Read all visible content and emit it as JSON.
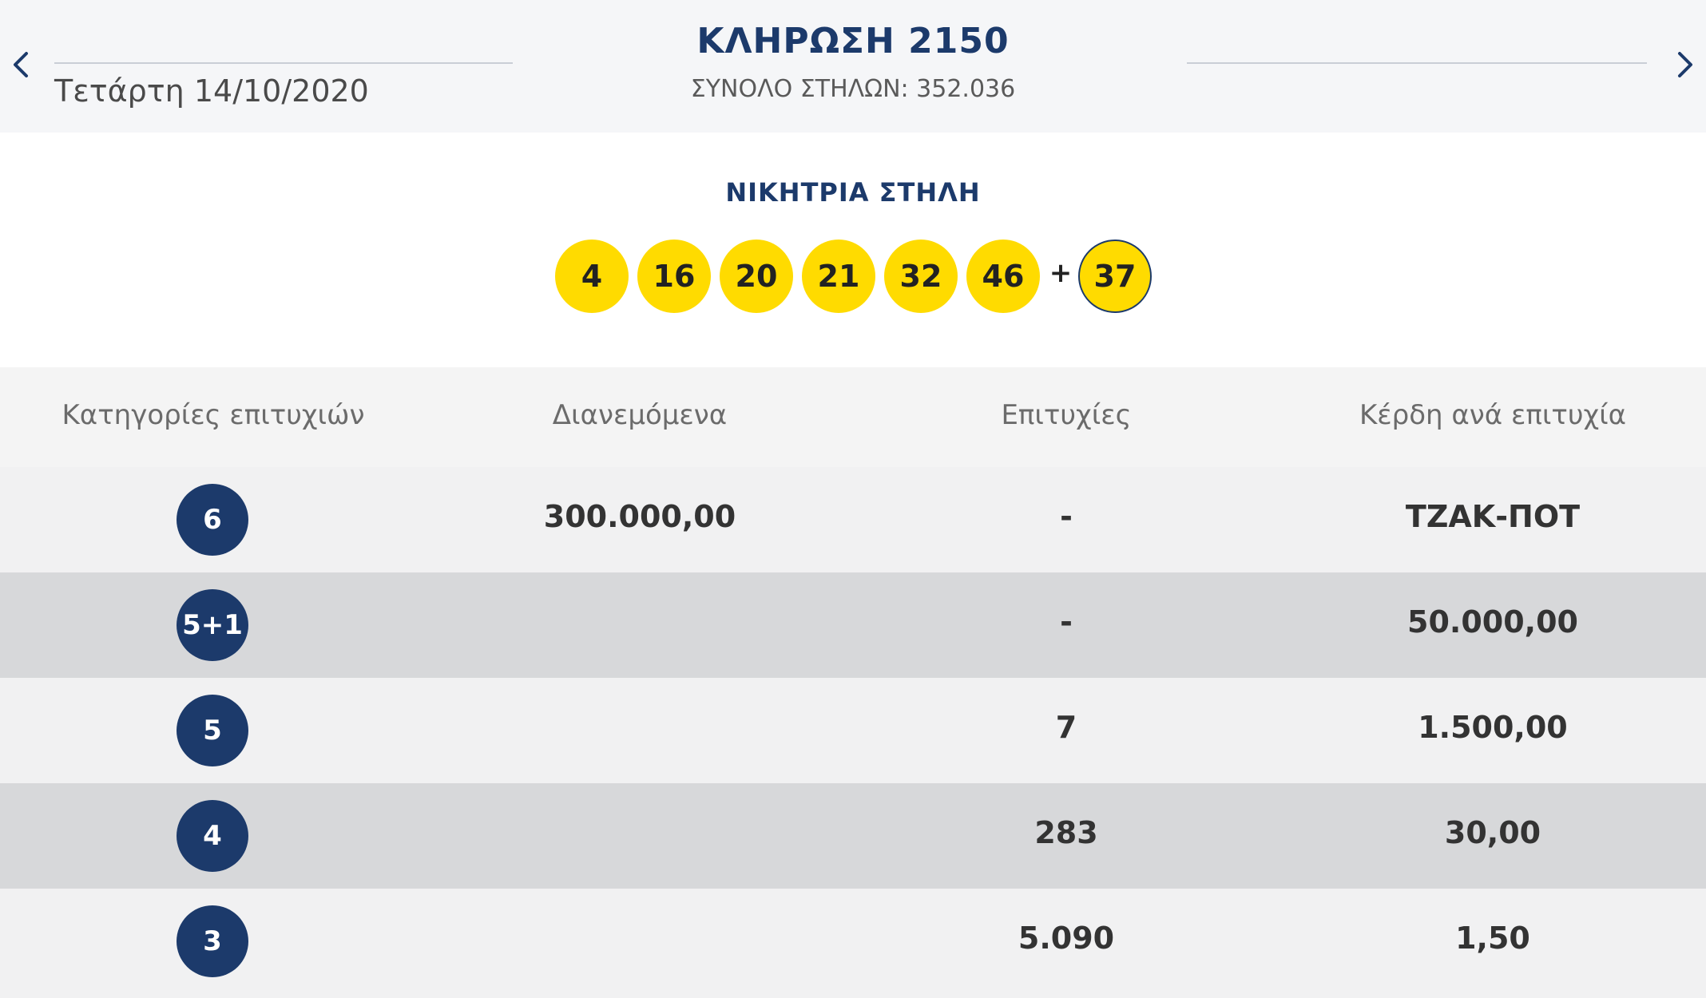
{
  "header": {
    "date": "Τετάρτη 14/10/2020",
    "title": "ΚΛΗΡΩΣΗ 2150",
    "total_columns": "ΣΥΝΟΛΟ ΣΤΗΛΩΝ: 352.036",
    "prev_icon": "chevron-left-icon",
    "next_icon": "chevron-right-icon"
  },
  "winning": {
    "label": "ΝΙΚΗΤΡΙΑ ΣΤΗΛΗ",
    "numbers": [
      "4",
      "16",
      "20",
      "21",
      "32",
      "46"
    ],
    "plus": "+",
    "bonus": "37",
    "ball_color": "#ffdb00"
  },
  "table": {
    "headers": [
      "Κατηγορίες επιτυχιών",
      "Διανεμόμενα",
      "Επιτυχίες",
      "Κέρδη ανά επιτυχία"
    ],
    "rows": [
      {
        "category": "6",
        "distributed": "300.000,00",
        "winners": "-",
        "prize": "ΤΖΑΚ-ΠΟΤ"
      },
      {
        "category": "5+1",
        "distributed": "",
        "winners": "-",
        "prize": "50.000,00"
      },
      {
        "category": "5",
        "distributed": "",
        "winners": "7",
        "prize": "1.500,00"
      },
      {
        "category": "4",
        "distributed": "",
        "winners": "283",
        "prize": "30,00"
      },
      {
        "category": "3",
        "distributed": "",
        "winners": "5.090",
        "prize": "1,50"
      }
    ],
    "badge_color": "#1c3a6b"
  }
}
